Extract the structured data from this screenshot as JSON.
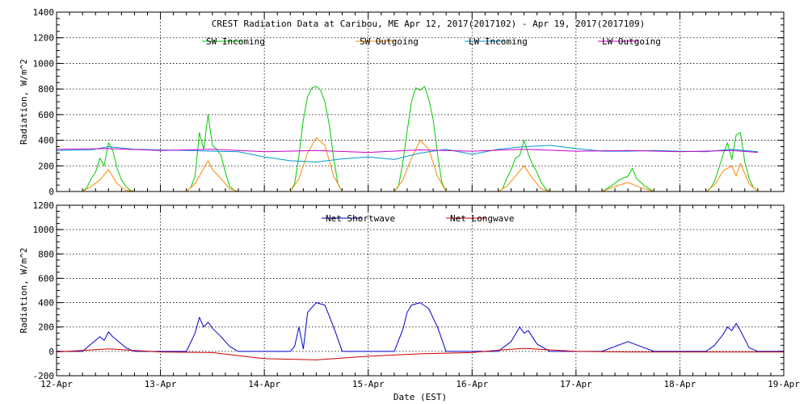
{
  "chart_data": [
    {
      "type": "line",
      "title": "CREST Radiation Data at Caribou, ME   Apr 12, 2017(2017102) - Apr 19, 2017(2017109)",
      "ylabel": "Radiation, W/m^2",
      "xlabel": "",
      "ylim": [
        0,
        1400
      ],
      "yticks": [
        0,
        200,
        400,
        600,
        800,
        1000,
        1200,
        1400
      ],
      "xlim": [
        "2017-04-12",
        "2017-04-19"
      ],
      "grid": true,
      "legend": "top",
      "series": [
        {
          "name": "SW Incoming",
          "color": "#00cc00",
          "x": [
            "2017-04-12 00:00",
            "2017-04-12 06:00",
            "2017-04-12 07:00",
            "2017-04-12 08:00",
            "2017-04-12 09:00",
            "2017-04-12 10:00",
            "2017-04-12 11:00",
            "2017-04-12 12:00",
            "2017-04-12 13:00",
            "2017-04-12 14:00",
            "2017-04-12 15:00",
            "2017-04-12 16:00",
            "2017-04-12 17:00",
            "2017-04-12 18:00",
            "2017-04-13 06:00",
            "2017-04-13 07:00",
            "2017-04-13 08:00",
            "2017-04-13 09:00",
            "2017-04-13 10:00",
            "2017-04-13 11:00",
            "2017-04-13 12:00",
            "2017-04-13 13:00",
            "2017-04-13 14:00",
            "2017-04-13 15:00",
            "2017-04-13 16:00",
            "2017-04-13 17:00",
            "2017-04-13 18:00",
            "2017-04-14 06:00",
            "2017-04-14 07:00",
            "2017-04-14 08:00",
            "2017-04-14 09:00",
            "2017-04-14 10:00",
            "2017-04-14 11:00",
            "2017-04-14 12:00",
            "2017-04-14 13:00",
            "2017-04-14 14:00",
            "2017-04-14 15:00",
            "2017-04-14 16:00",
            "2017-04-14 17:00",
            "2017-04-14 18:00",
            "2017-04-15 06:00",
            "2017-04-15 07:00",
            "2017-04-15 08:00",
            "2017-04-15 09:00",
            "2017-04-15 10:00",
            "2017-04-15 11:00",
            "2017-04-15 12:00",
            "2017-04-15 13:00",
            "2017-04-15 14:00",
            "2017-04-15 15:00",
            "2017-04-15 16:00",
            "2017-04-15 17:00",
            "2017-04-15 18:00",
            "2017-04-16 06:00",
            "2017-04-16 07:00",
            "2017-04-16 08:00",
            "2017-04-16 09:00",
            "2017-04-16 10:00",
            "2017-04-16 11:00",
            "2017-04-16 12:00",
            "2017-04-16 13:00",
            "2017-04-16 14:00",
            "2017-04-16 15:00",
            "2017-04-16 16:00",
            "2017-04-16 17:00",
            "2017-04-16 18:00",
            "2017-04-17 06:00",
            "2017-04-17 08:00",
            "2017-04-17 10:00",
            "2017-04-17 12:00",
            "2017-04-17 13:00",
            "2017-04-17 14:00",
            "2017-04-17 16:00",
            "2017-04-17 18:00",
            "2017-04-18 06:00",
            "2017-04-18 07:00",
            "2017-04-18 08:00",
            "2017-04-18 09:00",
            "2017-04-18 10:00",
            "2017-04-18 11:00",
            "2017-04-18 12:00",
            "2017-04-18 13:00",
            "2017-04-18 14:00",
            "2017-04-18 15:00",
            "2017-04-18 16:00",
            "2017-04-18 17:00",
            "2017-04-18 18:00",
            "2017-04-19 00:00"
          ],
          "values": [
            0,
            0,
            30,
            100,
            150,
            260,
            200,
            380,
            320,
            180,
            90,
            40,
            10,
            0,
            0,
            30,
            120,
            460,
            330,
            600,
            360,
            330,
            280,
            150,
            40,
            10,
            0,
            0,
            60,
            280,
            560,
            740,
            810,
            820,
            790,
            700,
            520,
            260,
            60,
            0,
            0,
            40,
            230,
            470,
            700,
            810,
            790,
            820,
            720,
            560,
            300,
            70,
            0,
            0,
            20,
            100,
            170,
            260,
            280,
            400,
            290,
            210,
            150,
            70,
            20,
            0,
            0,
            40,
            90,
            120,
            180,
            100,
            40,
            0,
            0,
            20,
            80,
            180,
            290,
            380,
            250,
            440,
            460,
            230,
            100,
            30,
            0,
            0
          ]
        },
        {
          "name": "SW Outgoing",
          "color": "#ff8800",
          "x": [
            "2017-04-12 00:00",
            "2017-04-12 06:00",
            "2017-04-12 08:00",
            "2017-04-12 10:00",
            "2017-04-12 12:00",
            "2017-04-12 14:00",
            "2017-04-12 16:00",
            "2017-04-12 18:00",
            "2017-04-13 06:00",
            "2017-04-13 08:00",
            "2017-04-13 10:00",
            "2017-04-13 11:00",
            "2017-04-13 12:00",
            "2017-04-13 14:00",
            "2017-04-13 16:00",
            "2017-04-13 18:00",
            "2017-04-14 06:00",
            "2017-04-14 08:00",
            "2017-04-14 10:00",
            "2017-04-14 12:00",
            "2017-04-14 14:00",
            "2017-04-14 16:00",
            "2017-04-14 18:00",
            "2017-04-15 06:00",
            "2017-04-15 08:00",
            "2017-04-15 10:00",
            "2017-04-15 12:00",
            "2017-04-15 14:00",
            "2017-04-15 16:00",
            "2017-04-15 18:00",
            "2017-04-16 06:00",
            "2017-04-16 08:00",
            "2017-04-16 10:00",
            "2017-04-16 12:00",
            "2017-04-16 14:00",
            "2017-04-16 16:00",
            "2017-04-16 18:00",
            "2017-04-17 06:00",
            "2017-04-17 09:00",
            "2017-04-17 12:00",
            "2017-04-17 15:00",
            "2017-04-17 18:00",
            "2017-04-18 06:00",
            "2017-04-18 08:00",
            "2017-04-18 10:00",
            "2017-04-18 12:00",
            "2017-04-18 13:00",
            "2017-04-18 14:00",
            "2017-04-18 16:00",
            "2017-04-18 18:00",
            "2017-04-19 00:00"
          ],
          "values": [
            0,
            0,
            40,
            90,
            170,
            60,
            10,
            0,
            0,
            60,
            180,
            240,
            170,
            100,
            20,
            0,
            0,
            100,
            300,
            420,
            360,
            120,
            0,
            0,
            90,
            260,
            400,
            330,
            120,
            0,
            0,
            40,
            120,
            200,
            100,
            20,
            0,
            0,
            40,
            70,
            30,
            0,
            0,
            50,
            160,
            200,
            120,
            220,
            60,
            0,
            0
          ]
        },
        {
          "name": "LW Incoming",
          "color": "#0099cc",
          "x": [
            "2017-04-12 00:00",
            "2017-04-12 08:00",
            "2017-04-12 12:00",
            "2017-04-12 18:00",
            "2017-04-13 06:00",
            "2017-04-13 12:00",
            "2017-04-13 18:00",
            "2017-04-14 00:00",
            "2017-04-14 06:00",
            "2017-04-14 12:00",
            "2017-04-14 18:00",
            "2017-04-15 00:00",
            "2017-04-15 06:00",
            "2017-04-15 12:00",
            "2017-04-15 18:00",
            "2017-04-16 00:00",
            "2017-04-16 06:00",
            "2017-04-16 12:00",
            "2017-04-16 18:00",
            "2017-04-17 00:00",
            "2017-04-17 06:00",
            "2017-04-17 12:00",
            "2017-04-17 18:00",
            "2017-04-18 00:00",
            "2017-04-18 06:00",
            "2017-04-18 12:00",
            "2017-04-18 18:00"
          ],
          "values": [
            320,
            325,
            350,
            330,
            320,
            315,
            310,
            270,
            240,
            230,
            255,
            270,
            250,
            300,
            330,
            290,
            330,
            350,
            360,
            335,
            315,
            315,
            320,
            315,
            310,
            330,
            310
          ]
        },
        {
          "name": "LW Outgoing",
          "color": "#cc00cc",
          "x": [
            "2017-04-12 00:00",
            "2017-04-12 12:00",
            "2017-04-13 00:00",
            "2017-04-13 12:00",
            "2017-04-14 00:00",
            "2017-04-14 12:00",
            "2017-04-15 00:00",
            "2017-04-15 12:00",
            "2017-04-16 00:00",
            "2017-04-16 12:00",
            "2017-04-17 00:00",
            "2017-04-17 12:00",
            "2017-04-18 00:00",
            "2017-04-18 12:00",
            "2017-04-18 18:00"
          ],
          "values": [
            330,
            335,
            320,
            330,
            310,
            320,
            305,
            325,
            315,
            330,
            315,
            320,
            310,
            320,
            305
          ]
        }
      ]
    },
    {
      "type": "line",
      "title": "",
      "ylabel": "Radiation, W/m^2",
      "xlabel": "Date (EST)",
      "ylim": [
        -200,
        1200
      ],
      "yticks": [
        -200,
        0,
        200,
        400,
        600,
        800,
        1000,
        1200
      ],
      "xlim": [
        "2017-04-12",
        "2017-04-19"
      ],
      "xticks": [
        "12-Apr",
        "13-Apr",
        "14-Apr",
        "15-Apr",
        "16-Apr",
        "17-Apr",
        "18-Apr",
        "19-Apr"
      ],
      "grid": true,
      "legend": "top",
      "series": [
        {
          "name": "Net Shortwave",
          "color": "#0000cc",
          "x": [
            "2017-04-12 00:00",
            "2017-04-12 06:00",
            "2017-04-12 08:00",
            "2017-04-12 10:00",
            "2017-04-12 11:00",
            "2017-04-12 12:00",
            "2017-04-12 13:00",
            "2017-04-12 14:00",
            "2017-04-12 16:00",
            "2017-04-12 18:00",
            "2017-04-13 06:00",
            "2017-04-13 08:00",
            "2017-04-13 09:00",
            "2017-04-13 10:00",
            "2017-04-13 11:00",
            "2017-04-13 12:00",
            "2017-04-13 14:00",
            "2017-04-13 16:00",
            "2017-04-13 18:00",
            "2017-04-14 06:00",
            "2017-04-14 07:00",
            "2017-04-14 08:00",
            "2017-04-14 09:00",
            "2017-04-14 10:00",
            "2017-04-14 12:00",
            "2017-04-14 14:00",
            "2017-04-14 16:00",
            "2017-04-14 18:00",
            "2017-04-15 06:00",
            "2017-04-15 08:00",
            "2017-04-15 09:00",
            "2017-04-15 10:00",
            "2017-04-15 12:00",
            "2017-04-15 14:00",
            "2017-04-15 16:00",
            "2017-04-15 18:00",
            "2017-04-16 06:00",
            "2017-04-16 09:00",
            "2017-04-16 11:00",
            "2017-04-16 12:00",
            "2017-04-16 13:00",
            "2017-04-16 15:00",
            "2017-04-16 18:00",
            "2017-04-17 06:00",
            "2017-04-17 09:00",
            "2017-04-17 12:00",
            "2017-04-17 15:00",
            "2017-04-17 18:00",
            "2017-04-18 06:00",
            "2017-04-18 08:00",
            "2017-04-18 10:00",
            "2017-04-18 11:00",
            "2017-04-18 12:00",
            "2017-04-18 13:00",
            "2017-04-18 14:00",
            "2017-04-18 16:00",
            "2017-04-18 18:00",
            "2017-04-19 00:00"
          ],
          "values": [
            0,
            0,
            60,
            120,
            90,
            160,
            120,
            90,
            30,
            0,
            0,
            150,
            280,
            200,
            240,
            190,
            120,
            40,
            0,
            0,
            40,
            200,
            20,
            320,
            400,
            380,
            200,
            0,
            0,
            180,
            320,
            380,
            400,
            350,
            200,
            0,
            0,
            80,
            200,
            150,
            170,
            60,
            0,
            0,
            40,
            80,
            40,
            0,
            0,
            50,
            140,
            200,
            170,
            230,
            170,
            30,
            0,
            0
          ]
        },
        {
          "name": "Net Longwave",
          "color": "#cc0000",
          "x": [
            "2017-04-12 00:00",
            "2017-04-12 12:00",
            "2017-04-13 00:00",
            "2017-04-13 12:00",
            "2017-04-14 00:00",
            "2017-04-14 12:00",
            "2017-04-15 00:00",
            "2017-04-15 12:00",
            "2017-04-16 00:00",
            "2017-04-16 06:00",
            "2017-04-16 12:00",
            "2017-04-17 00:00",
            "2017-04-17 12:00",
            "2017-04-18 00:00",
            "2017-04-18 12:00",
            "2017-04-19 00:00"
          ],
          "values": [
            -5,
            20,
            -5,
            -10,
            -60,
            -70,
            -40,
            -20,
            -10,
            10,
            25,
            0,
            -5,
            -5,
            -5,
            -5
          ]
        }
      ]
    }
  ],
  "x_tick_labels": [
    "12-Apr",
    "13-Apr",
    "14-Apr",
    "15-Apr",
    "16-Apr",
    "17-Apr",
    "18-Apr",
    "19-Apr"
  ]
}
